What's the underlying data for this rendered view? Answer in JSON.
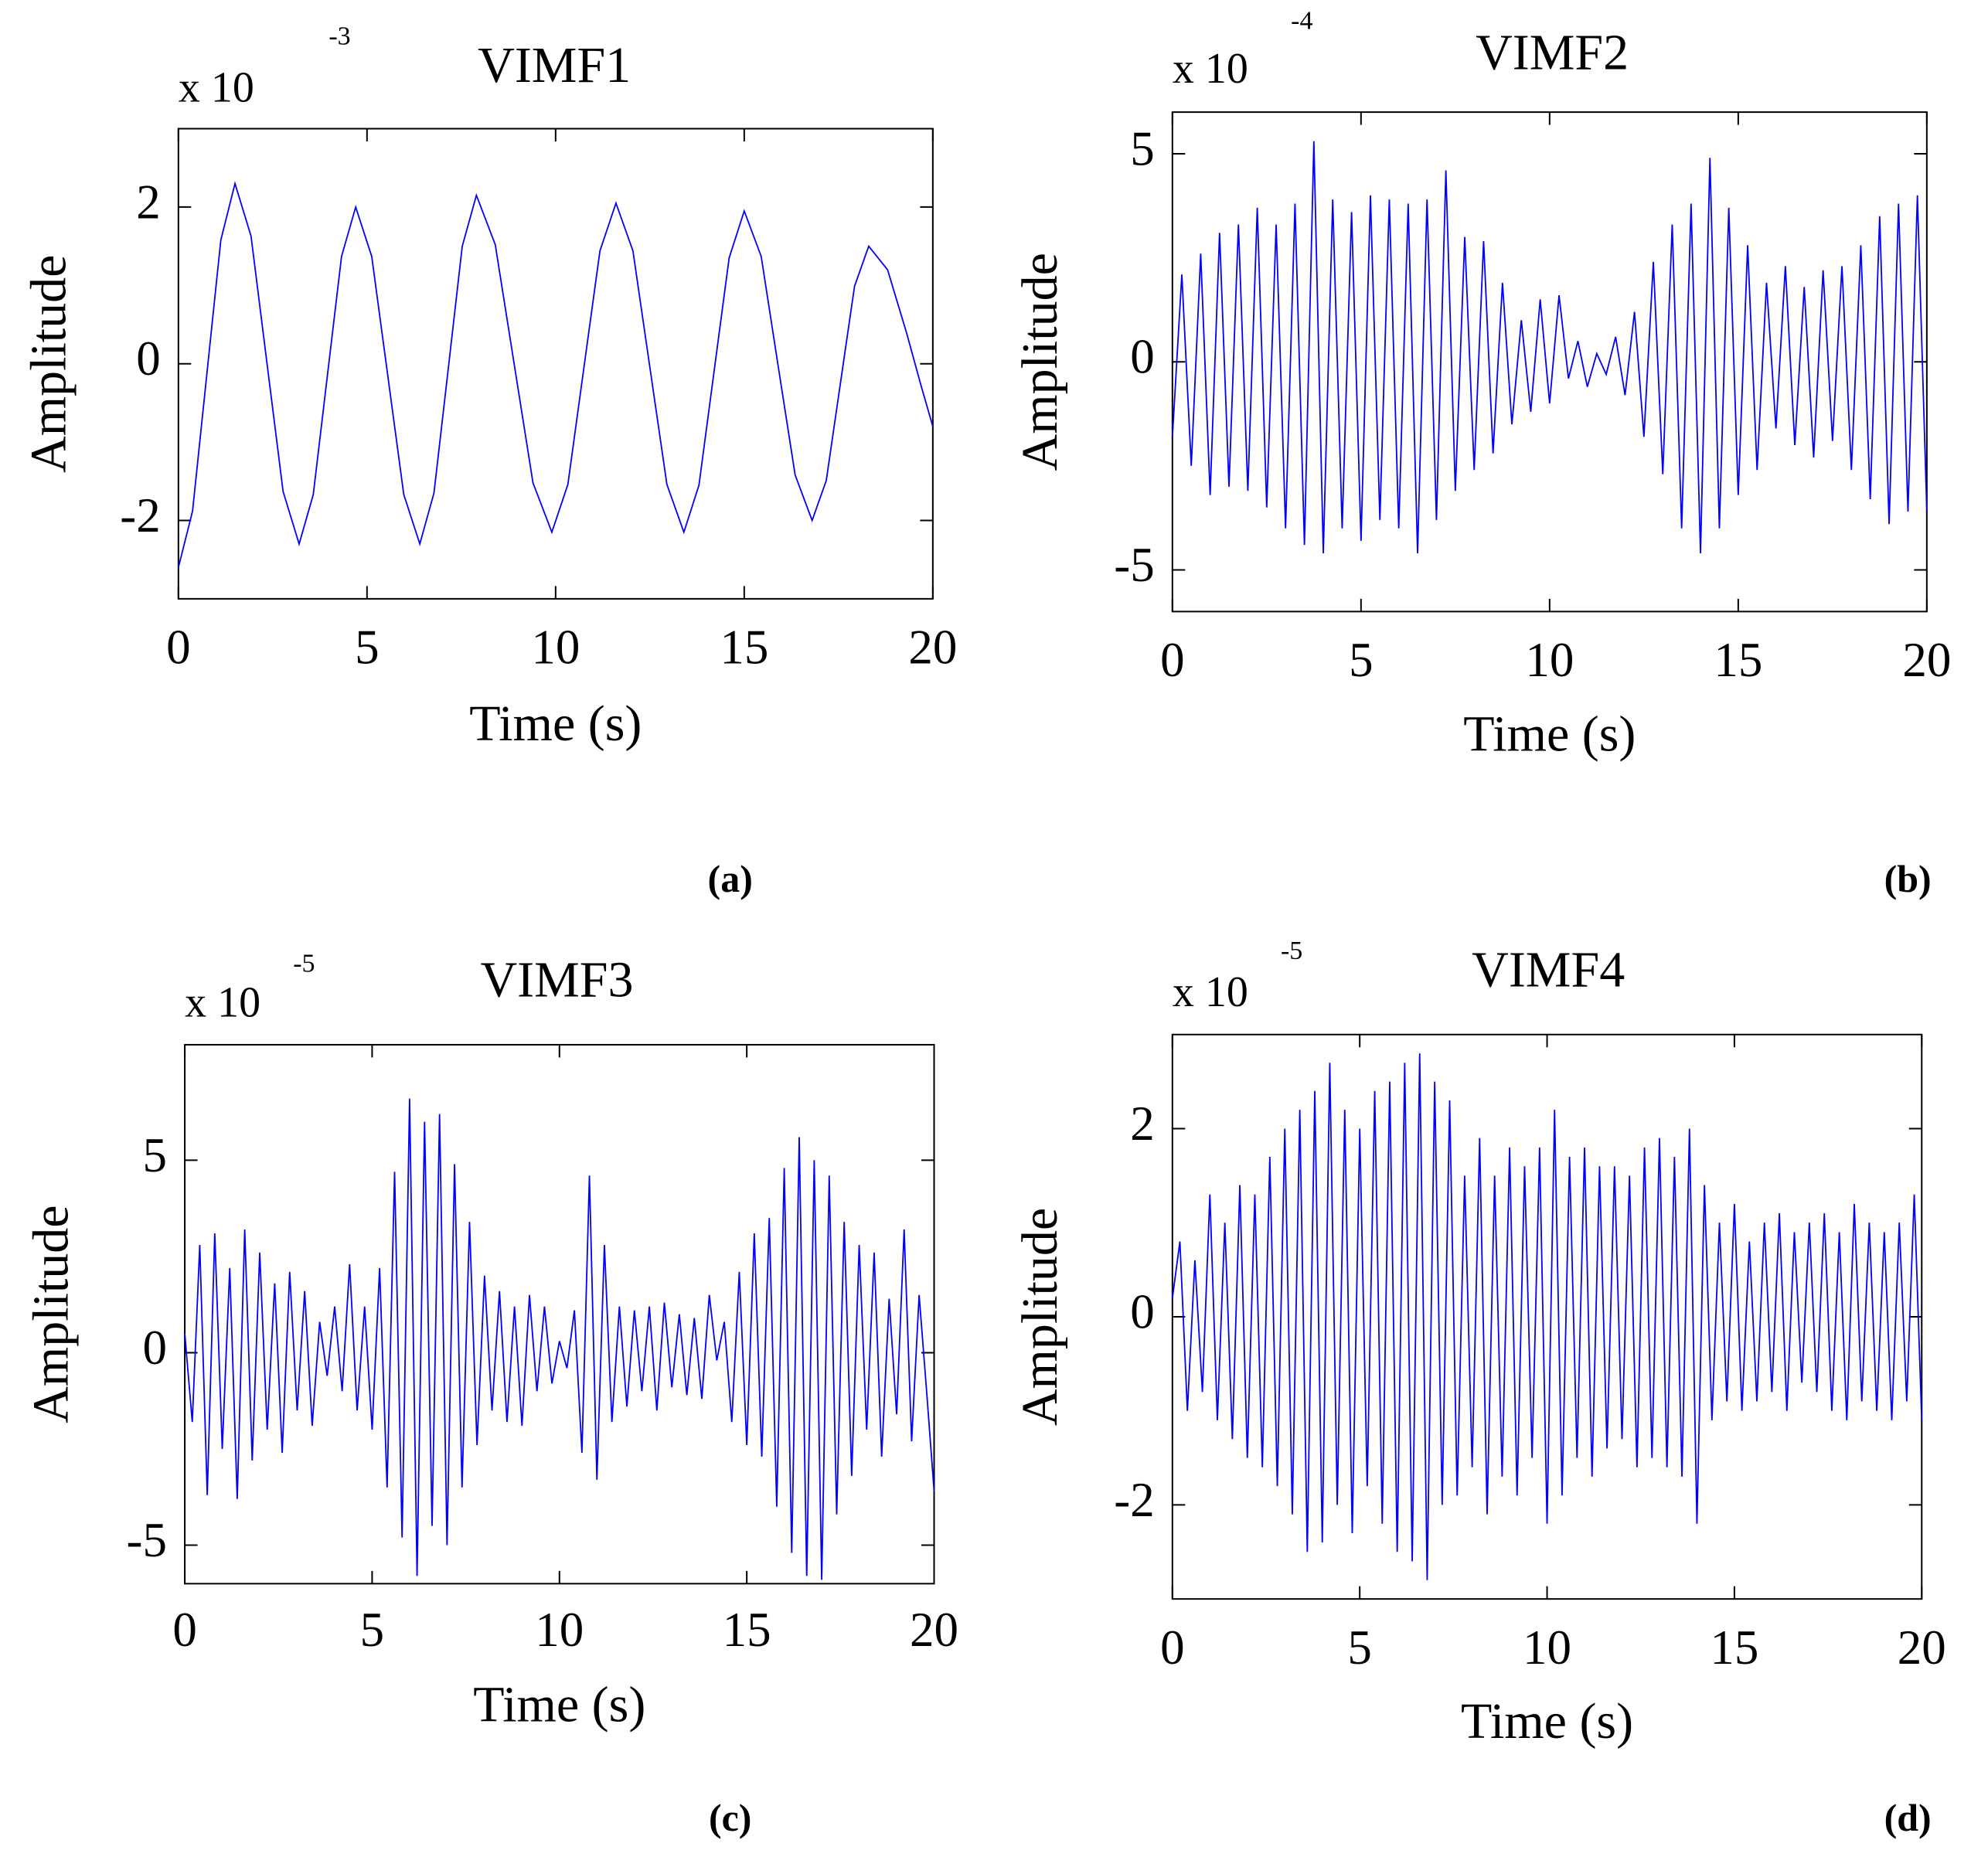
{
  "chart_data": [
    {
      "type": "line",
      "title": "VIMF1",
      "xlabel": "Time (s)",
      "ylabel": "Amplitude",
      "scale_label": "x 10",
      "scale_exponent": "-3",
      "panel_label": "(a)",
      "color": "#0000ff",
      "xlim": [
        0,
        20
      ],
      "ylim": [
        -3,
        3
      ],
      "xticks": [
        0,
        5,
        10,
        15,
        20
      ],
      "yticks": [
        -2,
        0,
        2
      ],
      "x": [
        0,
        0.375,
        0.75,
        1.125,
        1.5,
        1.925,
        2.35,
        2.775,
        3.2,
        3.575,
        3.95,
        4.325,
        4.7,
        5.125,
        5.55,
        5.975,
        6.4,
        6.775,
        7.15,
        7.525,
        7.9,
        8.4,
        8.9,
        9.4,
        9.9,
        10.325,
        10.75,
        11.175,
        11.6,
        12.05,
        12.5,
        12.95,
        13.4,
        13.8,
        14.2,
        14.6,
        15,
        15.45,
        15.9,
        16.35,
        16.8,
        17.175,
        17.55,
        17.925,
        18.3,
        18.8,
        19.3,
        19.7,
        20
      ],
      "values": [
        -2.6,
        -1.88,
        -0.15,
        1.58,
        2.3,
        1.63,
        0,
        -1.63,
        -2.3,
        -1.67,
        -0.15,
        1.37,
        2.0,
        1.37,
        -0.15,
        -1.67,
        -2.3,
        -1.65,
        -0.08,
        1.5,
        2.15,
        1.52,
        0,
        -1.52,
        -2.15,
        -1.54,
        -0.05,
        1.44,
        2.05,
        1.44,
        -0.05,
        -1.54,
        -2.15,
        -1.55,
        -0.1,
        1.35,
        1.95,
        1.37,
        -0.03,
        -1.42,
        -2.0,
        -1.49,
        -0.25,
        0.99,
        1.5,
        1.2,
        0.4,
        -0.3,
        -0.8
      ]
    },
    {
      "type": "line",
      "title": "VIMF2",
      "xlabel": "Time (s)",
      "ylabel": "Amplitude",
      "scale_label": "x 10",
      "scale_exponent": "-4",
      "panel_label": "(b)",
      "color": "#0000ff",
      "xlim": [
        0,
        20
      ],
      "ylim": [
        -6,
        6
      ],
      "xticks": [
        0,
        5,
        10,
        15,
        20
      ],
      "yticks": [
        -5,
        0,
        5
      ],
      "x": [
        0,
        0.25,
        0.5,
        0.75,
        1,
        1.25,
        1.5,
        1.75,
        2,
        2.25,
        2.5,
        2.75,
        3,
        3.25,
        3.5,
        3.75,
        4,
        4.25,
        4.5,
        4.75,
        5,
        5.25,
        5.5,
        5.75,
        6,
        6.25,
        6.5,
        6.75,
        7,
        7.25,
        7.5,
        7.75,
        8,
        8.25,
        8.5,
        8.75,
        9,
        9.25,
        9.5,
        9.75,
        10,
        10.25,
        10.5,
        10.75,
        11,
        11.25,
        11.5,
        11.75,
        12,
        12.25,
        12.5,
        12.75,
        13,
        13.25,
        13.5,
        13.75,
        14,
        14.25,
        14.5,
        14.75,
        15,
        15.25,
        15.5,
        15.75,
        16,
        16.25,
        16.5,
        16.75,
        17,
        17.25,
        17.5,
        17.75,
        18,
        18.25,
        18.5,
        18.75,
        19,
        19.25,
        19.5,
        19.75,
        20
      ],
      "values": [
        -1.8,
        2.1,
        -2.5,
        2.6,
        -3.2,
        3.1,
        -3.0,
        3.3,
        -3.1,
        3.7,
        -3.5,
        3.3,
        -4.0,
        3.8,
        -4.4,
        5.3,
        -4.6,
        3.9,
        -4.0,
        3.6,
        -4.3,
        4.0,
        -3.8,
        3.9,
        -4.0,
        3.8,
        -4.6,
        3.9,
        -3.8,
        4.6,
        -3.1,
        3.0,
        -2.6,
        2.9,
        -2.2,
        1.9,
        -1.5,
        1.0,
        -1.2,
        1.5,
        -1.0,
        1.6,
        -0.4,
        0.5,
        -0.6,
        0.2,
        -0.3,
        0.6,
        -0.8,
        1.2,
        -1.8,
        2.4,
        -2.7,
        3.3,
        -4.0,
        3.8,
        -4.6,
        4.9,
        -4.0,
        3.7,
        -3.2,
        2.8,
        -2.6,
        1.9,
        -1.6,
        2.3,
        -2.0,
        1.8,
        -2.3,
        2.2,
        -1.9,
        2.3,
        -2.6,
        2.8,
        -3.3,
        3.5,
        -3.9,
        3.8,
        -3.6,
        4.0,
        -3.6
      ]
    },
    {
      "type": "line",
      "title": "VIMF3",
      "xlabel": "Time (s)",
      "ylabel": "Amplitude",
      "scale_label": "x 10",
      "scale_exponent": "-5",
      "panel_label": "(c)",
      "color": "#0000ff",
      "xlim": [
        0,
        20
      ],
      "ylim": [
        -6,
        8
      ],
      "xticks": [
        0,
        5,
        10,
        15,
        20
      ],
      "yticks": [
        -5,
        0,
        5
      ],
      "x": [
        0,
        0.2,
        0.4,
        0.6,
        0.8,
        1,
        1.2,
        1.4,
        1.6,
        1.8,
        2,
        2.2,
        2.4,
        2.6,
        2.8,
        3,
        3.2,
        3.4,
        3.6,
        3.8,
        4,
        4.2,
        4.4,
        4.6,
        4.8,
        5,
        5.2,
        5.4,
        5.6,
        5.8,
        6,
        6.2,
        6.4,
        6.6,
        6.8,
        7,
        7.2,
        7.4,
        7.6,
        7.8,
        8,
        8.2,
        8.4,
        8.6,
        8.8,
        9,
        9.2,
        9.4,
        9.6,
        9.8,
        10,
        10.2,
        10.4,
        10.6,
        10.8,
        11,
        11.2,
        11.4,
        11.6,
        11.8,
        12,
        12.2,
        12.4,
        12.6,
        12.8,
        13,
        13.2,
        13.4,
        13.6,
        13.8,
        14,
        14.2,
        14.4,
        14.6,
        14.8,
        15,
        15.2,
        15.4,
        15.6,
        15.8,
        16,
        16.2,
        16.4,
        16.6,
        16.8,
        17,
        17.2,
        17.4,
        17.6,
        17.8,
        18,
        18.2,
        18.4,
        18.6,
        18.8,
        19,
        19.2,
        19.4,
        19.6,
        19.8,
        20
      ],
      "values": [
        0.5,
        -1.8,
        2.8,
        -3.7,
        3.1,
        -2.5,
        2.2,
        -3.8,
        3.2,
        -2.8,
        2.6,
        -2.0,
        1.8,
        -2.6,
        2.1,
        -1.5,
        1.6,
        -1.9,
        0.8,
        -0.6,
        1.2,
        -1.0,
        2.3,
        -1.5,
        1.2,
        -2.0,
        2.2,
        -3.5,
        4.7,
        -4.8,
        6.6,
        -5.8,
        6.0,
        -4.5,
        6.2,
        -5.0,
        4.9,
        -3.5,
        3.4,
        -2.4,
        2.0,
        -1.5,
        1.6,
        -1.8,
        1.2,
        -1.9,
        1.5,
        -1.0,
        1.2,
        -0.8,
        0.3,
        -0.4,
        1.1,
        -2.6,
        4.6,
        -3.3,
        2.8,
        -1.8,
        1.2,
        -1.4,
        1.1,
        -1.0,
        1.2,
        -1.5,
        1.3,
        -0.9,
        1.0,
        -1.1,
        0.9,
        -1.2,
        1.5,
        -0.2,
        0.8,
        -1.8,
        2.1,
        -2.4,
        3.1,
        -2.7,
        3.5,
        -4.0,
        4.8,
        -5.2,
        5.6,
        -5.8,
        5.0,
        -5.9,
        4.6,
        -4.2,
        3.4,
        -3.2,
        2.8,
        -2.0,
        2.6,
        -2.7,
        1.4,
        -1.6,
        3.2,
        -2.3,
        1.5,
        -1.0,
        -3.6
      ]
    },
    {
      "type": "line",
      "title": "VIMF4",
      "xlabel": "Time (s)",
      "ylabel": "Amplitude",
      "scale_label": "x 10",
      "scale_exponent": "-5",
      "panel_label": "(d)",
      "color": "#0000ff",
      "xlim": [
        0,
        20
      ],
      "ylim": [
        -3,
        3
      ],
      "xticks": [
        0,
        5,
        10,
        15,
        20
      ],
      "yticks": [
        -2,
        0,
        2
      ],
      "x": [
        0,
        0.2,
        0.4,
        0.6,
        0.8,
        1,
        1.2,
        1.4,
        1.6,
        1.8,
        2,
        2.2,
        2.4,
        2.6,
        2.8,
        3,
        3.2,
        3.4,
        3.6,
        3.8,
        4,
        4.2,
        4.4,
        4.6,
        4.8,
        5,
        5.2,
        5.4,
        5.6,
        5.8,
        6,
        6.2,
        6.4,
        6.6,
        6.8,
        7,
        7.2,
        7.4,
        7.6,
        7.8,
        8,
        8.2,
        8.4,
        8.6,
        8.8,
        9,
        9.2,
        9.4,
        9.6,
        9.8,
        10,
        10.2,
        10.4,
        10.6,
        10.8,
        11,
        11.2,
        11.4,
        11.6,
        11.8,
        12,
        12.2,
        12.4,
        12.6,
        12.8,
        13,
        13.2,
        13.4,
        13.6,
        13.8,
        14,
        14.2,
        14.4,
        14.6,
        14.8,
        15,
        15.2,
        15.4,
        15.6,
        15.8,
        16,
        16.2,
        16.4,
        16.6,
        16.8,
        17,
        17.2,
        17.4,
        17.6,
        17.8,
        18,
        18.2,
        18.4,
        18.6,
        18.8,
        19,
        19.2,
        19.4,
        19.6,
        19.8,
        20
      ],
      "values": [
        0.2,
        0.8,
        -1.0,
        0.6,
        -0.8,
        1.3,
        -1.1,
        1.0,
        -1.3,
        1.4,
        -1.5,
        1.3,
        -1.6,
        1.7,
        -1.8,
        2.0,
        -2.1,
        2.2,
        -2.5,
        2.4,
        -2.4,
        2.7,
        -2.0,
        2.2,
        -2.3,
        2.0,
        -1.8,
        2.4,
        -2.2,
        2.5,
        -2.5,
        2.7,
        -2.6,
        2.8,
        -2.8,
        2.5,
        -2.0,
        2.3,
        -1.9,
        1.5,
        -1.6,
        1.9,
        -2.1,
        1.5,
        -1.7,
        1.8,
        -1.9,
        1.6,
        -1.5,
        1.8,
        -2.2,
        2.2,
        -1.9,
        1.7,
        -1.5,
        1.8,
        -1.7,
        1.6,
        -1.4,
        1.6,
        -1.3,
        1.5,
        -1.6,
        1.8,
        -1.5,
        1.9,
        -1.6,
        1.7,
        -1.7,
        2.0,
        -2.2,
        1.4,
        -1.1,
        1.0,
        -0.9,
        1.2,
        -1.0,
        0.8,
        -0.9,
        1.0,
        -0.8,
        1.1,
        -1.0,
        0.9,
        -0.7,
        1.0,
        -0.8,
        1.1,
        -1.0,
        0.9,
        -1.1,
        1.2,
        -0.9,
        1.0,
        -1.0,
        0.9,
        -1.1,
        1.0,
        -0.9,
        1.3,
        -1.1
      ]
    }
  ]
}
